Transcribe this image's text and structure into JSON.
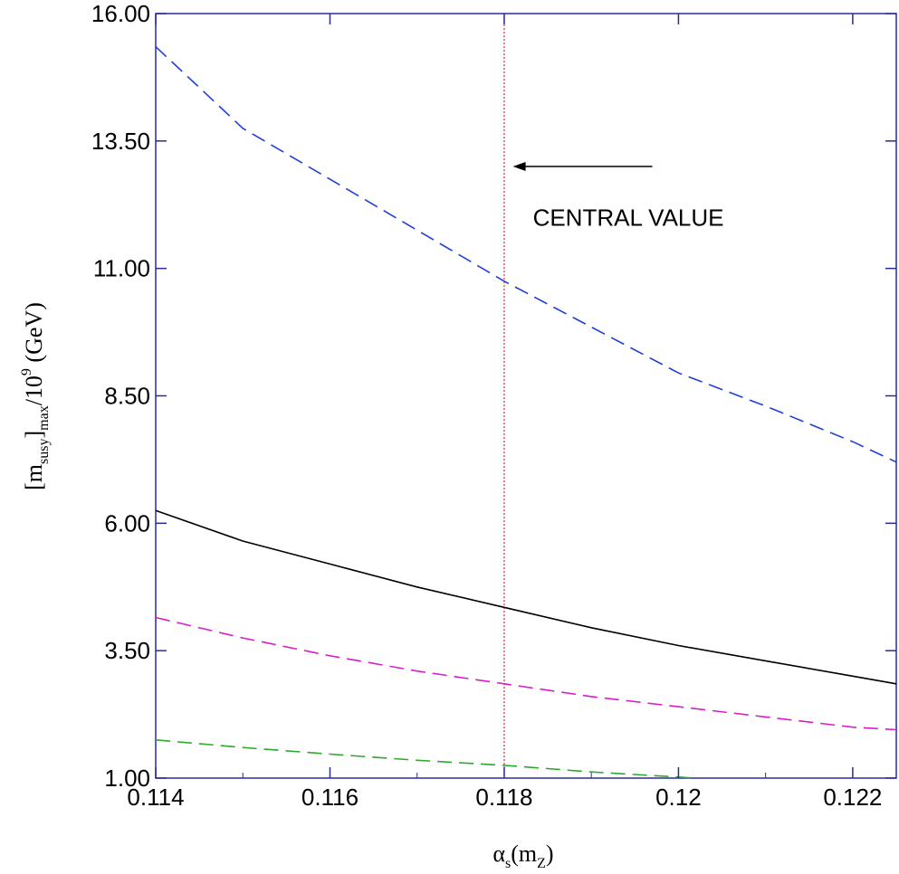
{
  "chart_data": {
    "type": "line",
    "xlabel": {
      "main": "α",
      "sub1": "s",
      "mid": "(m",
      "sub2": "Z",
      "end": ")"
    },
    "ylabel": {
      "open": "[m",
      "sub1": "susy",
      "mid": "]",
      "sub2": "max",
      "slash": "/10",
      "sup": "9",
      "unit": " (GeV)"
    },
    "xlim": [
      0.114,
      0.1225
    ],
    "ylim": [
      1.0,
      16.0
    ],
    "xticks": [
      0.114,
      0.116,
      0.118,
      0.12,
      0.122
    ],
    "xtick_labels": [
      "0.114",
      "0.116",
      "0.118",
      "0.12",
      "0.122"
    ],
    "yticks": [
      1.0,
      3.5,
      6.0,
      8.5,
      11.0,
      13.5,
      16.0
    ],
    "ytick_labels": [
      "1.00",
      "3.50",
      "6.00",
      "8.50",
      "11.00",
      "13.50",
      "16.00"
    ],
    "grid": false,
    "series": [
      {
        "color": "#1f3fd6",
        "style": "dashed",
        "x": [
          0.114,
          0.115,
          0.116,
          0.117,
          0.118,
          0.119,
          0.12,
          0.121,
          0.122,
          0.1225
        ],
        "y": [
          15.35,
          13.75,
          12.75,
          11.75,
          10.75,
          9.85,
          8.95,
          8.3,
          7.6,
          7.2
        ]
      },
      {
        "color": "#000000",
        "style": "solid",
        "x": [
          0.114,
          0.115,
          0.116,
          0.117,
          0.118,
          0.119,
          0.12,
          0.121,
          0.122,
          0.1225
        ],
        "y": [
          6.25,
          5.65,
          5.2,
          4.75,
          4.35,
          3.95,
          3.6,
          3.3,
          3.0,
          2.85
        ]
      },
      {
        "color": "#d61fc8",
        "style": "dashed",
        "x": [
          0.114,
          0.115,
          0.116,
          0.117,
          0.118,
          0.119,
          0.12,
          0.121,
          0.122,
          0.1225
        ],
        "y": [
          4.15,
          3.75,
          3.4,
          3.1,
          2.85,
          2.6,
          2.4,
          2.2,
          2.0,
          1.95
        ]
      },
      {
        "color": "#2fa82f",
        "style": "dashed",
        "x": [
          0.114,
          0.115,
          0.116,
          0.117,
          0.118,
          0.119,
          0.1202
        ],
        "y": [
          1.75,
          1.6,
          1.47,
          1.35,
          1.25,
          1.12,
          1.0
        ]
      }
    ],
    "reference_line": {
      "x": 0.118,
      "color": "#e03030",
      "style": "dotted"
    },
    "annotation": {
      "text": "CENTRAL VALUE",
      "arrow_to_x": 0.1181,
      "arrow_from_x": 0.1197,
      "arrow_y": 13.0,
      "text_x": 0.1181,
      "text_y": 12.0
    }
  }
}
